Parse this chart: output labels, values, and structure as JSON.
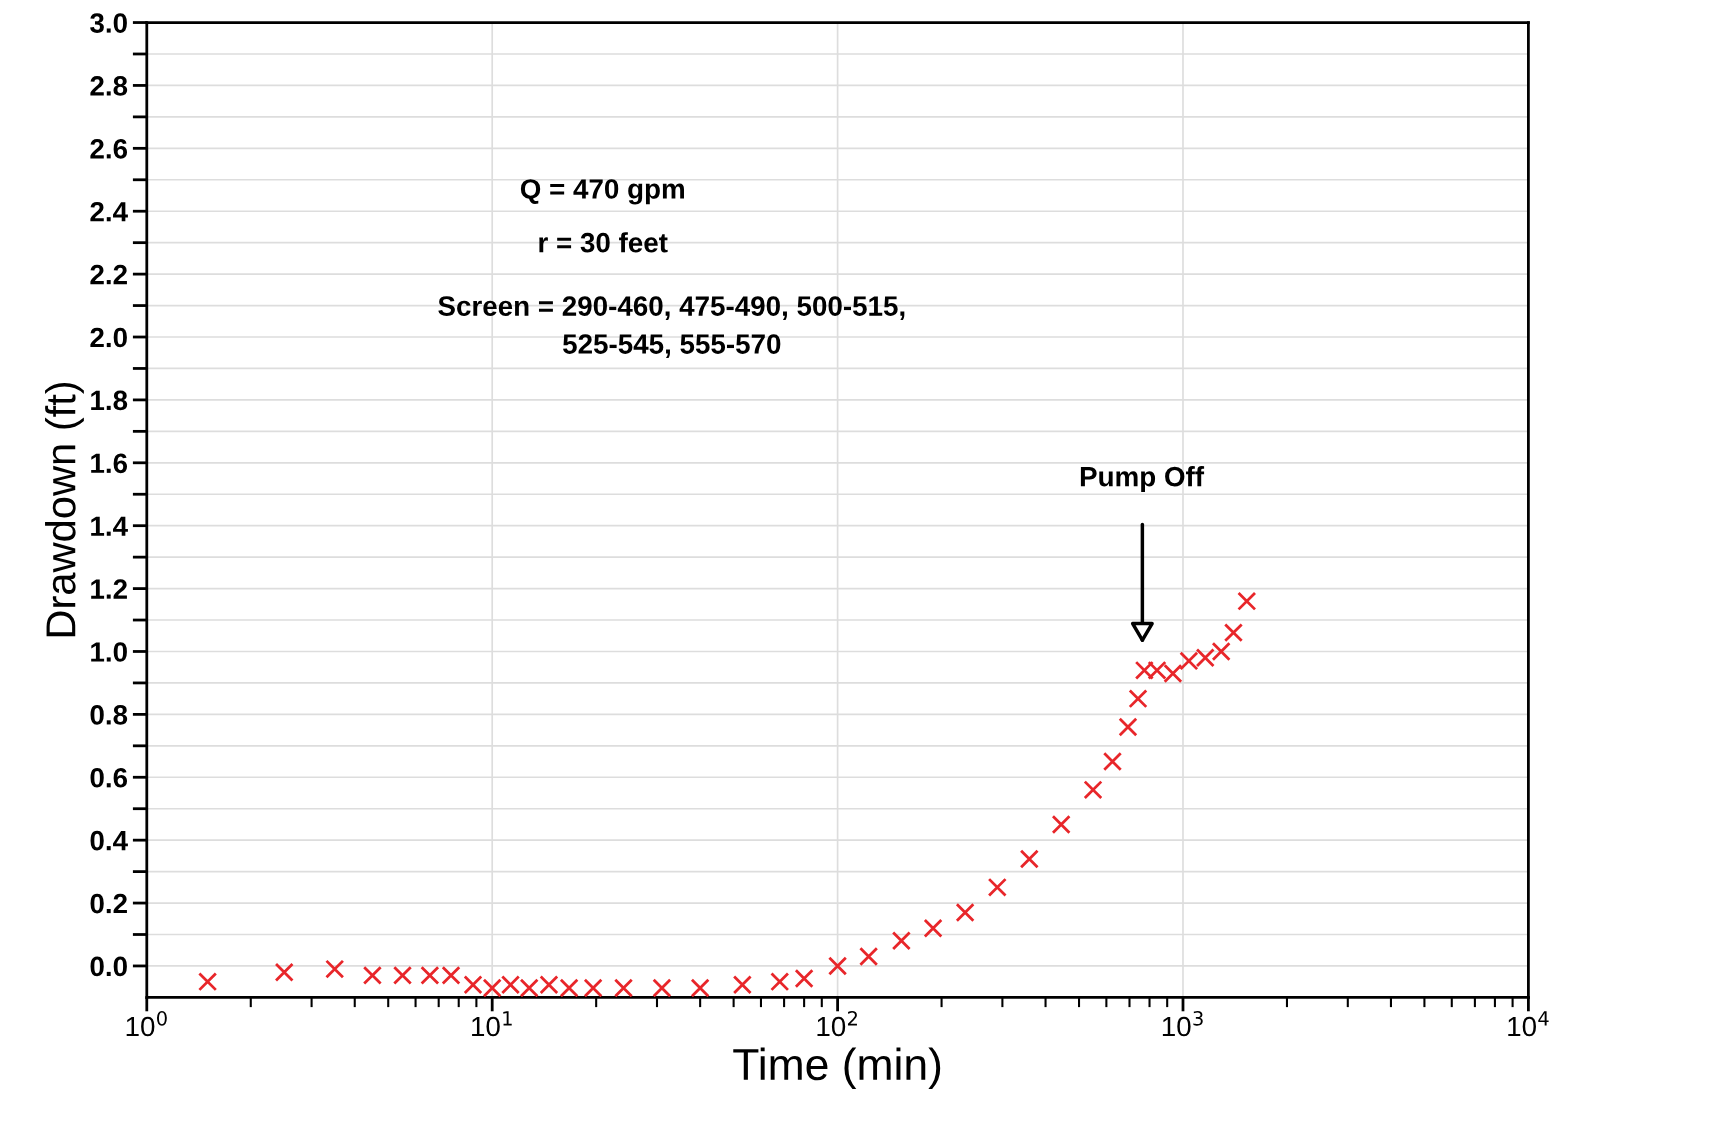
{
  "chart_data": {
    "type": "scatter",
    "xlabel": "Time (min)",
    "ylabel": "Drawdown (ft)",
    "log": "x",
    "marker": "cross",
    "grid": true,
    "xlim": [
      1,
      10000
    ],
    "xticks": [
      {
        "value": 1,
        "label": "10$^{0}$"
      },
      {
        "value": 10,
        "label": "10$^{1}$"
      },
      {
        "value": 100,
        "label": "10$^{2}$"
      },
      {
        "value": 1000,
        "label": "10$^{3}$"
      },
      {
        "value": 10000,
        "label": "10$^{4}$"
      }
    ],
    "ylim": [
      -0.1,
      3.0
    ],
    "yticks": [
      {
        "value": 0,
        "label": "0.0"
      },
      {
        "value": 0.1,
        "label": null
      },
      {
        "value": 0.2,
        "label": "0.2"
      },
      {
        "value": 0.3,
        "label": null
      },
      {
        "value": 0.4,
        "label": "0.4"
      },
      {
        "value": 0.5,
        "label": null
      },
      {
        "value": 0.6,
        "label": "0.6"
      },
      {
        "value": 0.7,
        "label": null
      },
      {
        "value": 0.8,
        "label": "0.8"
      },
      {
        "value": 0.9,
        "label": null
      },
      {
        "value": 1.0,
        "label": "1.0"
      },
      {
        "value": 1.1,
        "label": null
      },
      {
        "value": 1.2,
        "label": "1.2"
      },
      {
        "value": 1.3,
        "label": null
      },
      {
        "value": 1.4,
        "label": "1.4"
      },
      {
        "value": 1.5,
        "label": null
      },
      {
        "value": 1.6,
        "label": "1.6"
      },
      {
        "value": 1.7,
        "label": null
      },
      {
        "value": 1.8,
        "label": "1.8"
      },
      {
        "value": 1.9,
        "label": null
      },
      {
        "value": 2.0,
        "label": "2.0"
      },
      {
        "value": 2.1,
        "label": null
      },
      {
        "value": 2.2,
        "label": "2.2"
      },
      {
        "value": 2.3,
        "label": null
      },
      {
        "value": 2.4,
        "label": "2.4"
      },
      {
        "value": 2.5,
        "label": null
      },
      {
        "value": 2.6,
        "label": "2.6"
      },
      {
        "value": 2.7,
        "label": null
      },
      {
        "value": 2.8,
        "label": "2.8"
      },
      {
        "value": 2.9,
        "label": null
      },
      {
        "value": 3.0,
        "label": "3.0"
      }
    ],
    "series": [
      {
        "color": "#e8262a",
        "x": [
          1.5,
          2.5,
          3.5,
          4.5,
          5.5,
          6.6,
          7.6,
          8.8,
          10,
          11.3,
          12.8,
          14.6,
          16.7,
          19.6,
          24,
          31,
          40,
          53,
          68,
          80,
          100,
          123,
          153,
          189,
          234,
          290,
          359,
          444,
          549,
          625,
          693,
          741,
          773,
          841,
          935,
          1040,
          1160,
          1290,
          1400,
          1530
        ],
        "values": [
          -0.05,
          -0.02,
          -0.01,
          -0.03,
          -0.03,
          -0.03,
          -0.03,
          -0.06,
          -0.07,
          -0.06,
          -0.07,
          -0.06,
          -0.07,
          -0.07,
          -0.07,
          -0.07,
          -0.07,
          -0.06,
          -0.05,
          -0.04,
          0.0,
          0.03,
          0.08,
          0.12,
          0.17,
          0.25,
          0.34,
          0.45,
          0.56,
          0.65,
          0.76,
          0.85,
          0.94,
          0.94,
          0.93,
          0.97,
          0.98,
          1.0,
          1.06,
          1.16
        ]
      }
    ],
    "annotations": [
      "Q = 470 gpm",
      "r = 30 feet",
      "Screen = 290-460, 475-490, 500-515,\n525-545, 555-570",
      "Pump Off"
    ]
  }
}
